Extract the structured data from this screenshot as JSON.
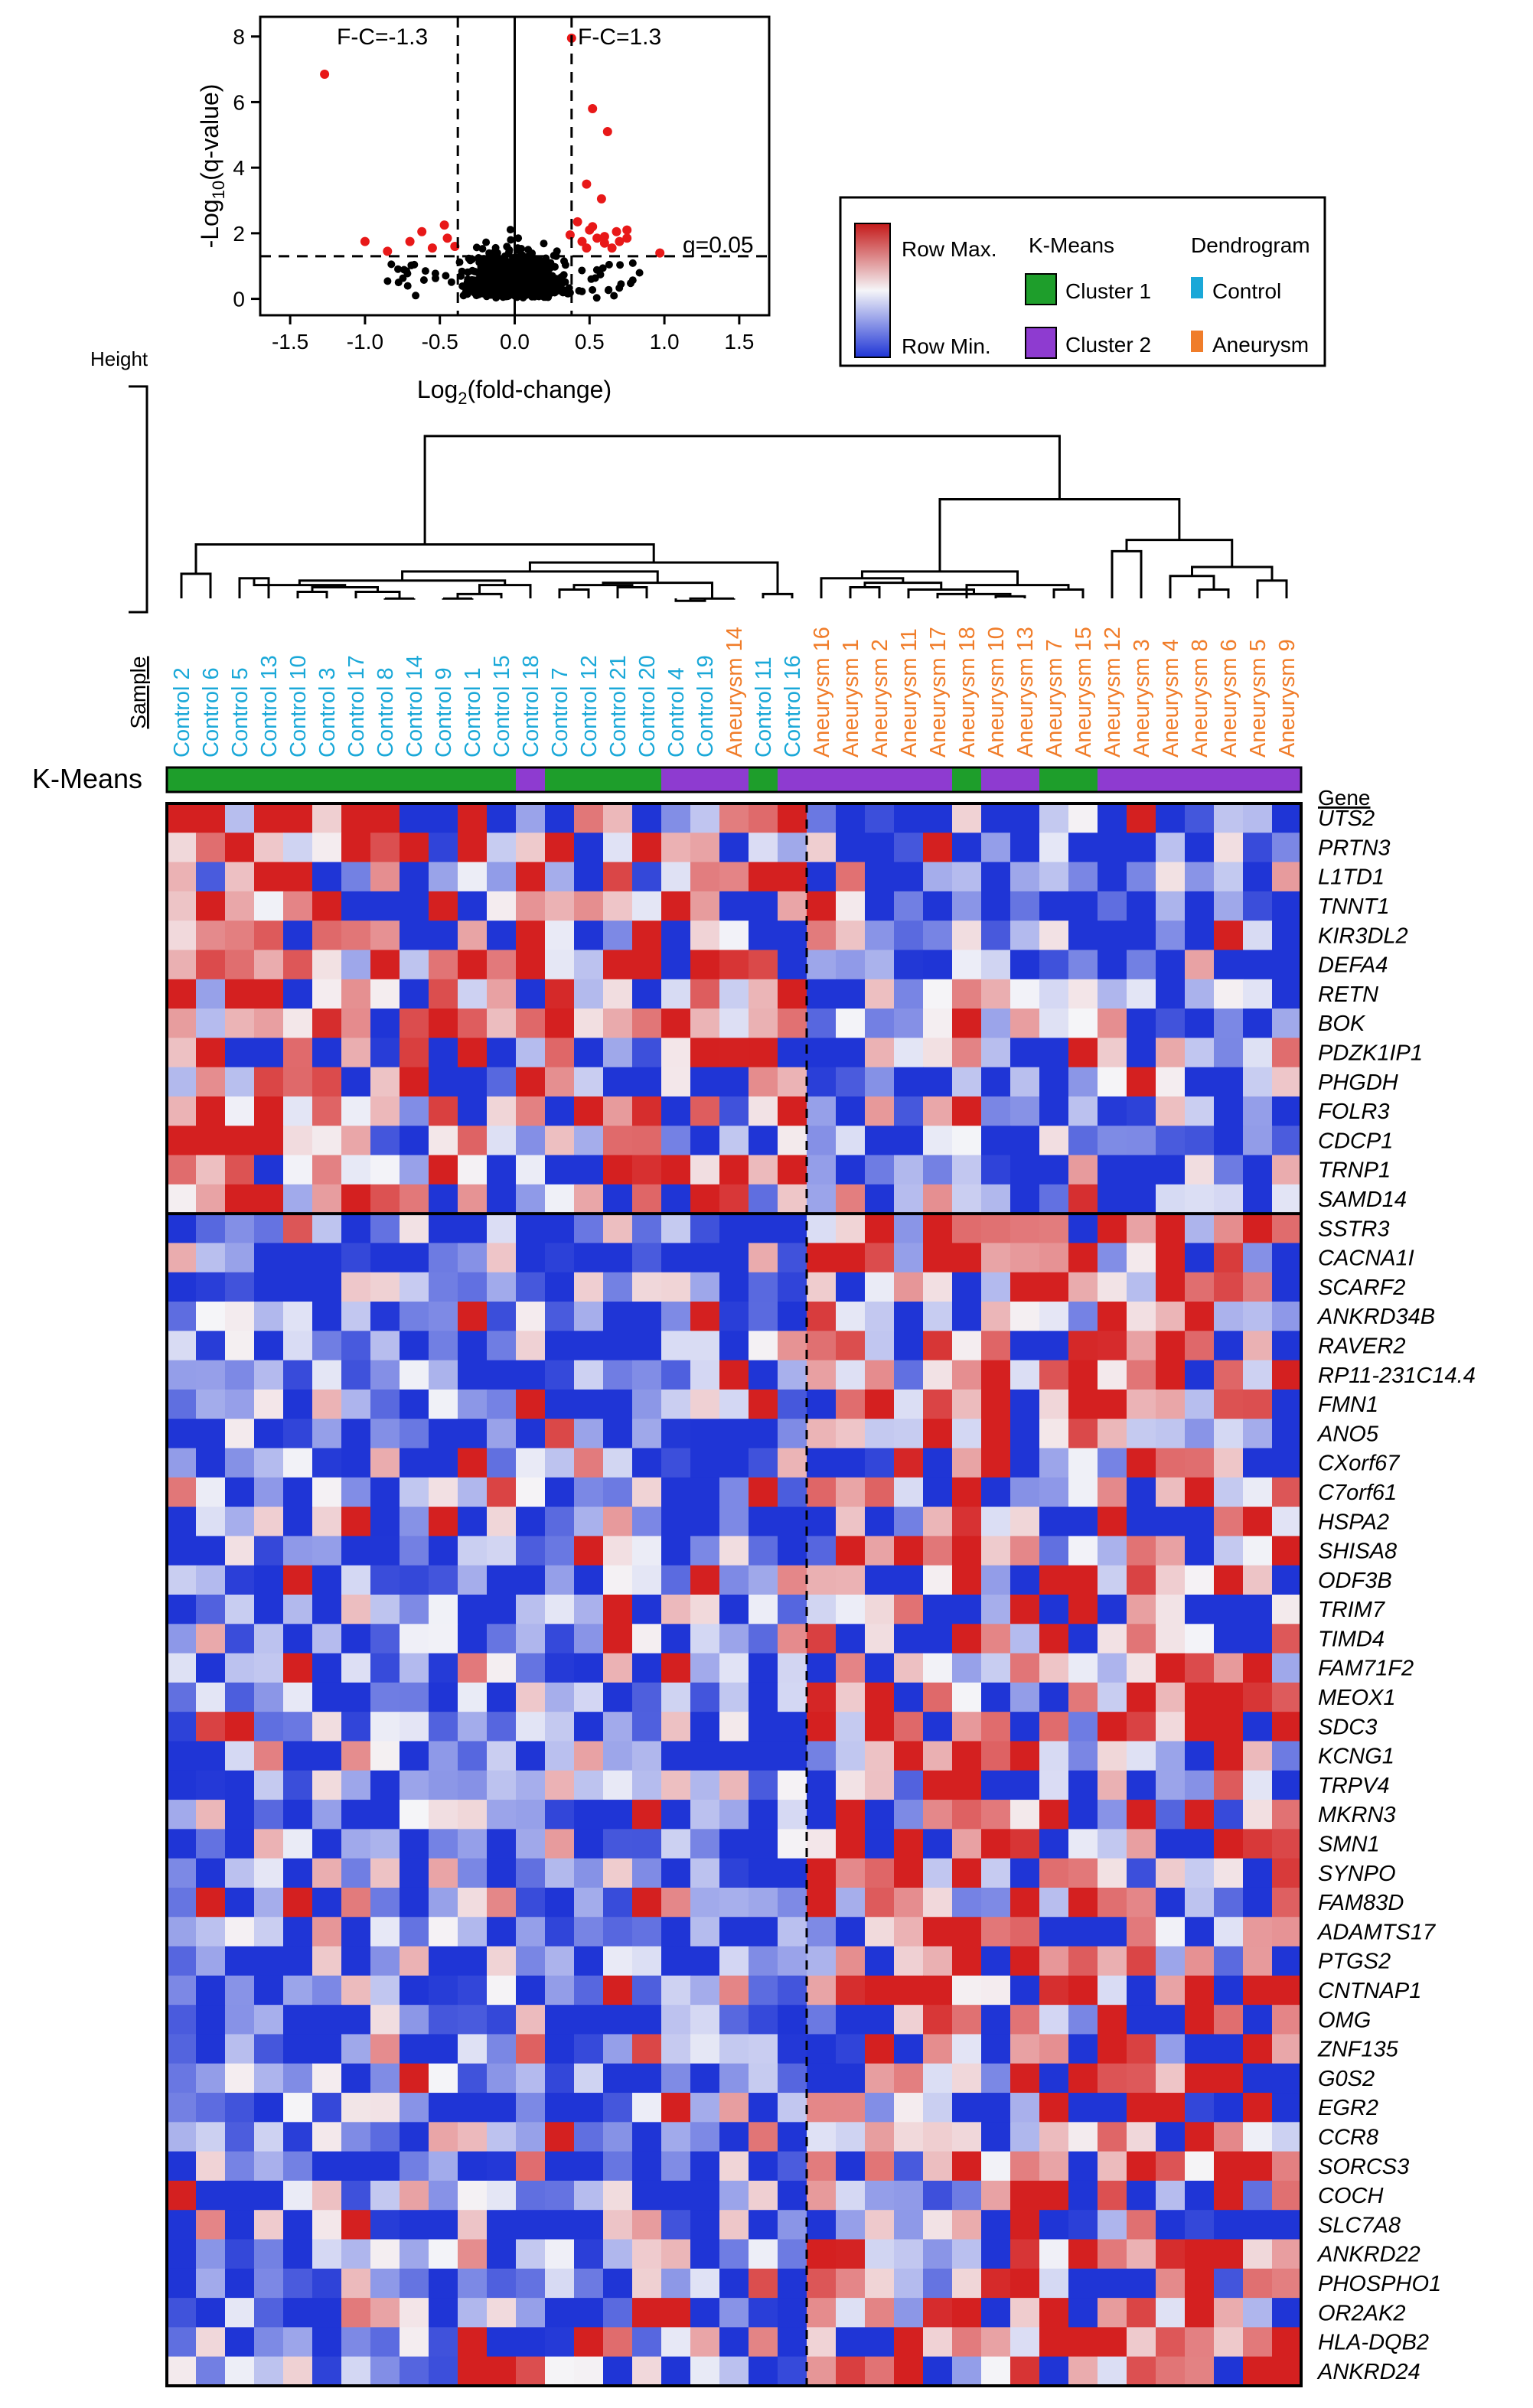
{
  "colors": {
    "control": "#1aa8d8",
    "aneurysm": "#f07d2a",
    "cluster1": "#1e9e2b",
    "cluster2": "#8e3bd0",
    "high": "#d42020",
    "mid": "#f5f5f8",
    "low": "#1f35d6",
    "sig_point": "#e81818",
    "point": "#000000"
  },
  "volcano": {
    "xlabel_main": "Log",
    "xlabel_sub": "2",
    "xlabel_rest": "(fold-change)",
    "ylabel_main": "-Log",
    "ylabel_sub": "10",
    "ylabel_rest": "(q-value)",
    "fc_neg_label": "F-C=-1.3",
    "fc_pos_label": "F-C=1.3",
    "q_label": "q=0.05",
    "xticks": [
      "-1.5",
      "-1.0",
      "-0.5",
      "0.0",
      "0.5",
      "1.0",
      "1.5"
    ],
    "yticks": [
      "0",
      "2",
      "4",
      "6",
      "8"
    ]
  },
  "legend": {
    "row_max": "Row Max.",
    "row_min": "Row Min.",
    "kmeans_title": "K-Means",
    "cluster1": "Cluster 1",
    "cluster2": "Cluster 2",
    "dendro_title": "Dendrogram",
    "control": "Control",
    "aneurysm": "Aneurysm"
  },
  "dendrogram": {
    "height_label": "Height"
  },
  "axis_labels": {
    "sample": "Sample",
    "kmeans": "K-Means",
    "gene": "Gene"
  },
  "chart_data": {
    "type": "heatmap",
    "title": "",
    "samples": [
      "Control 2",
      "Control 6",
      "Control 5",
      "Control 13",
      "Control 10",
      "Control 3",
      "Control 17",
      "Control 8",
      "Control 14",
      "Control 9",
      "Control 1",
      "Control 15",
      "Control 18",
      "Control 7",
      "Control 12",
      "Control 21",
      "Control 20",
      "Control 4",
      "Control 19",
      "Aneurysm 14",
      "Control 11",
      "Control 16",
      "Aneurysm 16",
      "Aneurysm 1",
      "Aneurysm 2",
      "Aneurysm 11",
      "Aneurysm 17",
      "Aneurysm 18",
      "Aneurysm 10",
      "Aneurysm 13",
      "Aneurysm 7",
      "Aneurysm 15",
      "Aneurysm 12",
      "Aneurysm 3",
      "Aneurysm 4",
      "Aneurysm 8",
      "Aneurysm 6",
      "Aneurysm 5",
      "Aneurysm 9"
    ],
    "kmeans_clusters": [
      1,
      1,
      1,
      1,
      1,
      1,
      1,
      1,
      1,
      1,
      1,
      1,
      2,
      1,
      1,
      1,
      1,
      2,
      2,
      2,
      1,
      2,
      2,
      2,
      2,
      2,
      2,
      1,
      2,
      2,
      1,
      1,
      2,
      2,
      2,
      2,
      2,
      2,
      2
    ],
    "genes": [
      "UTS2",
      "PRTN3",
      "L1TD1",
      "TNNT1",
      "KIR3DL2",
      "DEFA4",
      "RETN",
      "BOK",
      "PDZK1IP1",
      "PHGDH",
      "FOLR3",
      "CDCP1",
      "TRNP1",
      "SAMD14",
      "SSTR3",
      "CACNA1I",
      "SCARF2",
      "ANKRD34B",
      "RAVER2",
      "RP11-231C14.4",
      "FMN1",
      "ANO5",
      "CXorf67",
      "C7orf61",
      "HSPA2",
      "SHISA8",
      "ODF3B",
      "TRIM7",
      "TIMD4",
      "FAM71F2",
      "MEOX1",
      "SDC3",
      "KCNG1",
      "TRPV4",
      "MKRN3",
      "SMN1",
      "SYNPO",
      "FAM83D",
      "ADAMTS17",
      "PTGS2",
      "CNTNAP1",
      "OMG",
      "ZNF135",
      "G0S2",
      "EGR2",
      "CCR8",
      "SORCS3",
      "COCH",
      "SLC7A8",
      "ANKRD22",
      "PHOSPHO1",
      "OR2AK2",
      "HLA-DQB2",
      "ANKRD24"
    ],
    "gene_group_split": 14,
    "sample_group_split": 22,
    "color_scale": [
      "Row Min.",
      "Row Max."
    ],
    "volcano": {
      "type": "scatter",
      "xlabel": "Log2(fold-change)",
      "ylabel": "-Log10(q-value)",
      "xlim": [
        -1.7,
        1.7
      ],
      "ylim": [
        -0.5,
        8.6
      ],
      "fc_thresholds": [
        -0.38,
        0.38
      ],
      "q_threshold": 1.3,
      "significant_points": [
        [
          -1.27,
          6.85
        ],
        [
          -1.0,
          1.75
        ],
        [
          -0.85,
          1.45
        ],
        [
          -0.7,
          1.75
        ],
        [
          -0.62,
          2.05
        ],
        [
          -0.55,
          1.55
        ],
        [
          -0.47,
          2.25
        ],
        [
          -0.45,
          1.85
        ],
        [
          -0.4,
          1.6
        ],
        [
          0.37,
          1.95
        ],
        [
          0.38,
          7.95
        ],
        [
          0.42,
          2.35
        ],
        [
          0.45,
          1.75
        ],
        [
          0.48,
          3.5
        ],
        [
          0.48,
          1.55
        ],
        [
          0.5,
          2.1
        ],
        [
          0.52,
          2.2
        ],
        [
          0.52,
          5.8
        ],
        [
          0.55,
          1.85
        ],
        [
          0.58,
          3.05
        ],
        [
          0.6,
          1.7
        ],
        [
          0.6,
          1.9
        ],
        [
          0.62,
          5.1
        ],
        [
          0.65,
          1.55
        ],
        [
          0.68,
          2.05
        ],
        [
          0.7,
          1.75
        ],
        [
          0.75,
          1.85
        ],
        [
          0.75,
          2.1
        ],
        [
          0.97,
          1.4
        ]
      ]
    }
  }
}
